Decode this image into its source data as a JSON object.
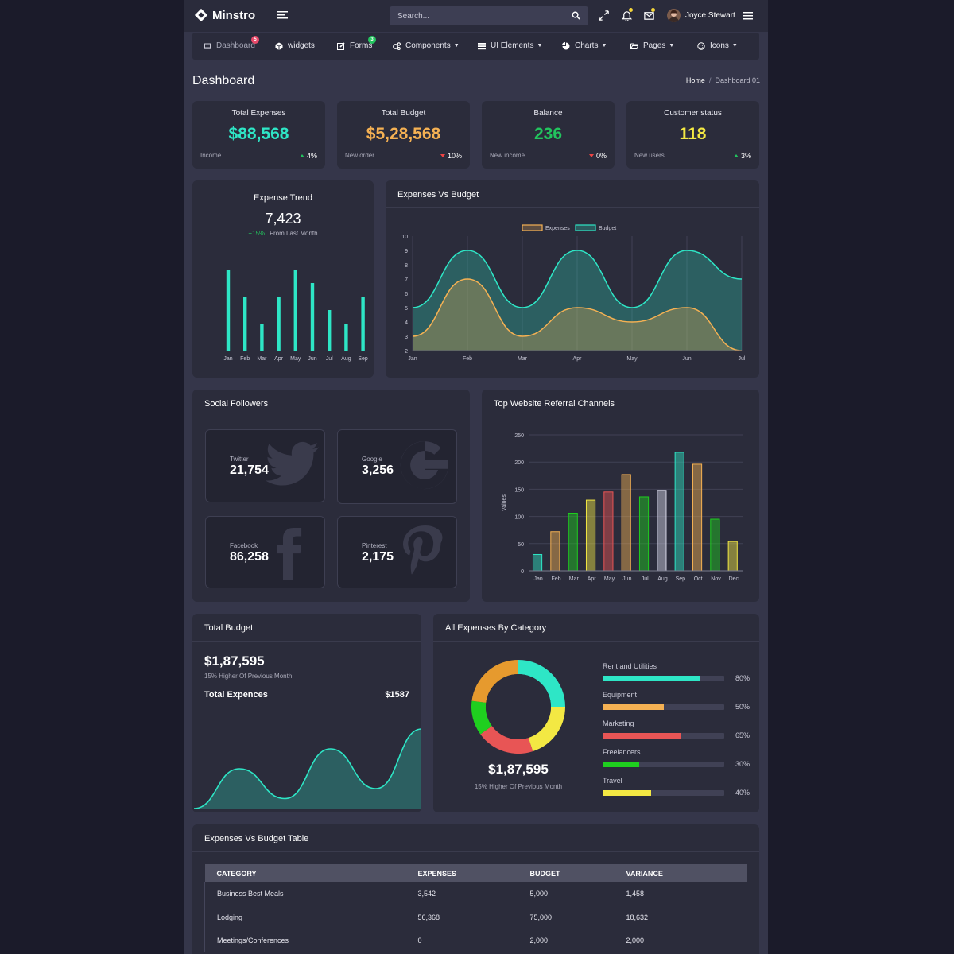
{
  "brand": {
    "name": "Minstro"
  },
  "search": {
    "placeholder": "Search..."
  },
  "user": {
    "name": "Joyce Stewart"
  },
  "nav": {
    "items": [
      {
        "label": "Dashboard",
        "badge": "5"
      },
      {
        "label": "widgets"
      },
      {
        "label": "Forms",
        "badge": "3"
      },
      {
        "label": "Components"
      },
      {
        "label": "UI Elements"
      },
      {
        "label": "Charts"
      },
      {
        "label": "Pages"
      },
      {
        "label": "Icons"
      }
    ]
  },
  "page": {
    "title": "Dashboard",
    "breadcrumb": {
      "home": "Home",
      "current": "Dashboard 01"
    }
  },
  "stats": [
    {
      "title": "Total Expenses",
      "value": "$88,568",
      "foot": "Income",
      "change": "4%",
      "dir": "up",
      "color": "#2ee6c6"
    },
    {
      "title": "Total Budget",
      "value": "$5,28,568",
      "foot": "New order",
      "change": "10%",
      "dir": "down",
      "color": "#f5b153"
    },
    {
      "title": "Balance",
      "value": "236",
      "foot": "New income",
      "change": "0%",
      "dir": "down",
      "color": "#22c55e"
    },
    {
      "title": "Customer status",
      "value": "118",
      "foot": "New users",
      "change": "3%",
      "dir": "up",
      "color": "#f3e843"
    }
  ],
  "trend": {
    "title": "Expense Trend",
    "value": "7,423",
    "pct": "+15%",
    "note": "From Last Month"
  },
  "social": {
    "title": "Social Followers",
    "items": [
      {
        "name": "Twitter",
        "count": "21,754",
        "icon": "twitter-icon"
      },
      {
        "name": "Google",
        "count": "3,256",
        "icon": "google-icon"
      },
      {
        "name": "Facebook",
        "count": "86,258",
        "icon": "facebook-icon"
      },
      {
        "name": "Pinterest",
        "count": "2,175",
        "icon": "pinterest-icon"
      }
    ]
  },
  "total_budget": {
    "title": "Total Budget",
    "value": "$1,87,595",
    "sub": "15% Higher Of Previous Month",
    "label": "Total Expences",
    "amount": "$1587"
  },
  "by_category": {
    "title": "All Expenses By Category",
    "total": "$1,87,595",
    "sub": "15% Higher Of Previous Month",
    "items": [
      {
        "name": "Rent and Utilities",
        "pct": "80%",
        "color": "#2ee6c6"
      },
      {
        "name": "Equipment",
        "pct": "50%",
        "color": "#f5b153"
      },
      {
        "name": "Marketing",
        "pct": "65%",
        "color": "#e85555"
      },
      {
        "name": "Freelancers",
        "pct": "30%",
        "color": "#1fcf1f"
      },
      {
        "name": "Travel",
        "pct": "40%",
        "color": "#f3e843"
      }
    ]
  },
  "table": {
    "title": "Expenses Vs Budget Table",
    "headers": [
      "CATEGORY",
      "EXPENSES",
      "BUDGET",
      "VARIANCE"
    ],
    "rows": [
      [
        "Business Best Meals",
        "3,542",
        "5,000",
        "1,458"
      ],
      [
        "Lodging",
        "56,368",
        "75,000",
        "18,632"
      ],
      [
        "Meetings/Conferences",
        "0",
        "2,000",
        "2,000"
      ]
    ]
  },
  "chart_data": [
    {
      "type": "bar",
      "categories": [
        "Jan",
        "Feb",
        "Mar",
        "Apr",
        "May",
        "Jun",
        "Jul",
        "Aug",
        "Sep"
      ],
      "values": [
        6,
        4,
        2,
        4,
        6,
        5,
        3,
        2,
        4
      ],
      "color": "#2ee6c6"
    },
    {
      "type": "area",
      "title": "Expenses Vs Budget",
      "categories": [
        "Jan",
        "Feb",
        "Mar",
        "Apr",
        "May",
        "Jun",
        "Jul"
      ],
      "ylim": [
        2,
        10
      ],
      "yticks": [
        2,
        3,
        4,
        5,
        6,
        7,
        8,
        9,
        10
      ],
      "legend": "top",
      "series": [
        {
          "name": "Expenses",
          "values": [
            3,
            7,
            3,
            5,
            4,
            5,
            2
          ],
          "color": "#f5b153"
        },
        {
          "name": "Budget",
          "values": [
            5,
            9,
            5,
            9,
            5,
            9,
            7
          ],
          "color": "#2ee6c6"
        }
      ]
    },
    {
      "type": "bar",
      "title": "Top Website Referral Channels",
      "ylabel": "Values",
      "categories": [
        "Jan",
        "Feb",
        "Mar",
        "Apr",
        "May",
        "Jun",
        "Jul",
        "Aug",
        "Sep",
        "Oct",
        "Nov",
        "Dec"
      ],
      "values": [
        30,
        72,
        106,
        130,
        145,
        177,
        136,
        148,
        218,
        196,
        95,
        54
      ],
      "colors": [
        "#2ee6c6",
        "#f5b153",
        "#1fcf1f",
        "#f3e843",
        "#e85555",
        "#f5b153",
        "#1fcf1f",
        "#d8d8e8",
        "#2ee6c6",
        "#f5b153",
        "#1fcf1f",
        "#f3e843"
      ],
      "ylim": [
        0,
        250
      ],
      "yticks": [
        0,
        50,
        100,
        150,
        200,
        250
      ]
    },
    {
      "type": "area",
      "title": "Total Budget",
      "values": [
        0,
        4,
        1,
        6,
        2,
        8
      ],
      "color": "#2ee6c6"
    },
    {
      "type": "pie",
      "title": "All Expenses By Category",
      "values": [
        25,
        20,
        20,
        12,
        23
      ],
      "colors": [
        "#2ee6c6",
        "#f3e843",
        "#e85555",
        "#1fcf1f",
        "#e69a2e"
      ]
    }
  ]
}
